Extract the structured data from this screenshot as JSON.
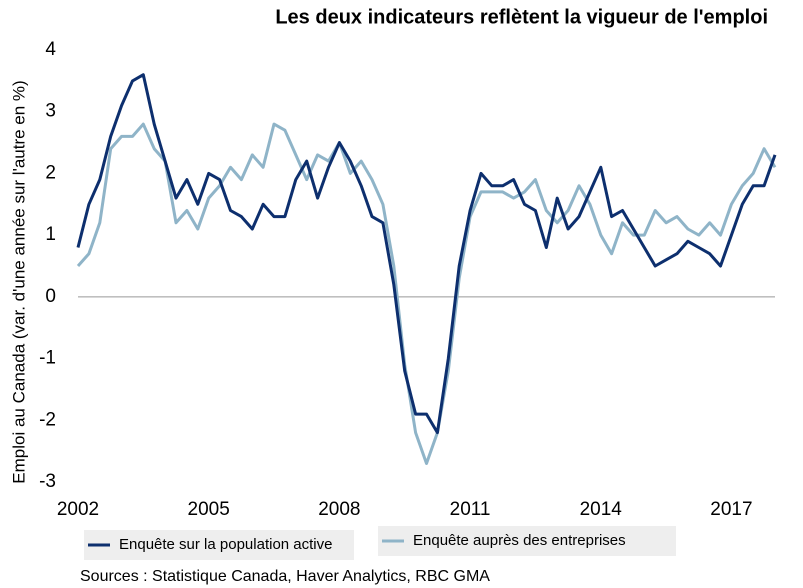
{
  "chart_data": {
    "type": "line",
    "title": "Les deux indicateurs reflètent la vigueur de l'emploi",
    "ylabel": "Emploi au Canada (var. d'une année sur l'autre en %)",
    "source": "Sources : Statistique Canada, Haver Analytics, RBC GMA",
    "x": [
      2002,
      2002.25,
      2002.5,
      2002.75,
      2003,
      2003.25,
      2003.5,
      2003.75,
      2004,
      2004.25,
      2004.5,
      2004.75,
      2005,
      2005.25,
      2005.5,
      2005.75,
      2006,
      2006.25,
      2006.5,
      2006.75,
      2007,
      2007.25,
      2007.5,
      2007.75,
      2008,
      2008.25,
      2008.5,
      2008.75,
      2009,
      2009.25,
      2009.5,
      2009.75,
      2010,
      2010.25,
      2010.5,
      2010.75,
      2011,
      2011.25,
      2011.5,
      2011.75,
      2012,
      2012.25,
      2012.5,
      2012.75,
      2013,
      2013.25,
      2013.5,
      2013.75,
      2014,
      2014.25,
      2014.5,
      2014.75,
      2015,
      2015.25,
      2015.5,
      2015.75,
      2016,
      2016.25,
      2016.5,
      2016.75,
      2017,
      2017.25,
      2017.5,
      2017.75,
      2018
    ],
    "series": [
      {
        "name": "Enquête sur la population active",
        "color": "#0d2f6e",
        "values": [
          0.8,
          1.5,
          1.9,
          2.6,
          3.1,
          3.5,
          3.6,
          2.8,
          2.2,
          1.6,
          1.9,
          1.5,
          2.0,
          1.9,
          1.4,
          1.3,
          1.1,
          1.5,
          1.3,
          1.3,
          1.9,
          2.2,
          1.6,
          2.1,
          2.5,
          2.2,
          1.8,
          1.3,
          1.2,
          0.2,
          -1.2,
          -1.9,
          -1.9,
          -2.2,
          -1.0,
          0.5,
          1.4,
          2.0,
          1.8,
          1.8,
          1.9,
          1.5,
          1.4,
          0.8,
          1.6,
          1.1,
          1.3,
          1.7,
          2.1,
          1.3,
          1.4,
          1.1,
          0.8,
          0.5,
          0.6,
          0.7,
          0.9,
          0.8,
          0.7,
          0.5,
          1.0,
          1.5,
          1.8,
          1.8,
          2.3
        ]
      },
      {
        "name": "Enquête auprès des entreprises",
        "color": "#8fb4c8",
        "values": [
          0.5,
          0.7,
          1.2,
          2.4,
          2.6,
          2.6,
          2.8,
          2.4,
          2.2,
          1.2,
          1.4,
          1.1,
          1.6,
          1.8,
          2.1,
          1.9,
          2.3,
          2.1,
          2.8,
          2.7,
          2.3,
          1.9,
          2.3,
          2.2,
          2.5,
          2.0,
          2.2,
          1.9,
          1.5,
          0.5,
          -1.1,
          -2.2,
          -2.7,
          -2.2,
          -1.2,
          0.3,
          1.3,
          1.7,
          1.7,
          1.7,
          1.6,
          1.7,
          1.9,
          1.4,
          1.2,
          1.4,
          1.8,
          1.5,
          1.0,
          0.7,
          1.2,
          1.0,
          1.0,
          1.4,
          1.2,
          1.3,
          1.1,
          1.0,
          1.2,
          1.0,
          1.5,
          1.8,
          2.0,
          2.4,
          2.1
        ]
      }
    ],
    "xlim": [
      2002,
      2018
    ],
    "xticks": [
      2002,
      2005,
      2008,
      2011,
      2014,
      2017
    ],
    "ylim": [
      -3,
      4
    ],
    "yticks": [
      -3,
      -2,
      -1,
      0,
      1,
      2,
      3,
      4
    ]
  }
}
